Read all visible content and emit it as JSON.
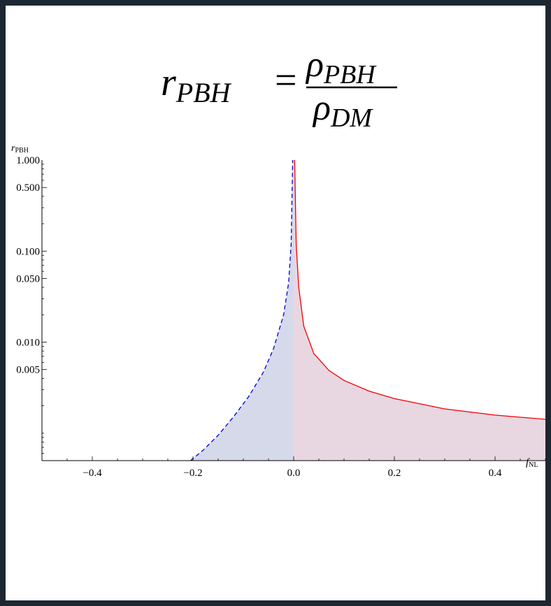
{
  "formula": {
    "lhs_symbol": "r",
    "lhs_sub": "PBH",
    "equals": "=",
    "num_symbol": "ρ",
    "num_sub": "PBH",
    "den_symbol": "ρ",
    "den_sub": "DM"
  },
  "chart_data": {
    "type": "area",
    "title": "",
    "xlabel_symbol": "f",
    "xlabel_sub": "NL",
    "ylabel_symbol": "r",
    "ylabel_sub": "PBH",
    "xlim": [
      -0.5,
      0.5
    ],
    "ylim": [
      0.0005,
      1.0
    ],
    "yscale": "log",
    "grid": false,
    "x_ticks": [
      -0.4,
      -0.2,
      0.0,
      0.2,
      0.4
    ],
    "x_tick_labels": [
      "−0.4",
      "−0.2",
      "0.0",
      "0.2",
      "0.4"
    ],
    "y_ticks": [
      1.0,
      0.5,
      0.1,
      0.05,
      0.01,
      0.005
    ],
    "y_tick_labels": [
      "1.000",
      "0.500",
      "0.100",
      "0.050",
      "0.010",
      "0.005"
    ],
    "series": [
      {
        "style": "dashed",
        "color": "#0000cc",
        "fill": "#d6d9ea",
        "x": [
          -0.205,
          -0.18,
          -0.15,
          -0.12,
          -0.09,
          -0.06,
          -0.04,
          -0.02,
          -0.01,
          -0.005,
          -0.002
        ],
        "y": [
          0.0005,
          0.00065,
          0.00095,
          0.0015,
          0.0025,
          0.0047,
          0.0085,
          0.02,
          0.045,
          0.12,
          1.0
        ]
      },
      {
        "style": "solid",
        "color": "#ee0000",
        "fill": "#e8d6e1",
        "x": [
          0.002,
          0.005,
          0.01,
          0.02,
          0.04,
          0.07,
          0.1,
          0.15,
          0.2,
          0.3,
          0.4,
          0.5
        ],
        "y": [
          1.0,
          0.12,
          0.04,
          0.015,
          0.0075,
          0.0049,
          0.0038,
          0.0029,
          0.0024,
          0.00185,
          0.00158,
          0.00142
        ]
      }
    ]
  }
}
